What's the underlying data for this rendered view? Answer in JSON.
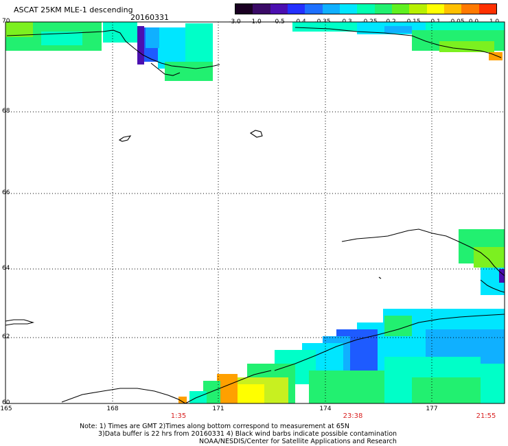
{
  "header": {
    "title": "ASCAT 25KM MLE-1 descending",
    "date": "20160331"
  },
  "colorbar": {
    "labels": [
      "-3.0",
      "-1.0",
      "-0.5",
      "-0.4",
      "-0.35",
      "-0.3",
      "-0.25",
      "-0.2",
      "-0.15",
      "-0.1",
      "-0.05",
      "0.0",
      "1.0"
    ],
    "colors": [
      "#1a0022",
      "#3a0a66",
      "#4b0fb0",
      "#2430ff",
      "#1e70ff",
      "#10b0ff",
      "#00e6ff",
      "#00ffb0",
      "#22f070",
      "#60f020",
      "#b8f000",
      "#ffff00",
      "#ffc000",
      "#ff7a00",
      "#ff3000"
    ]
  },
  "axes": {
    "latitudes": [
      "70",
      "68",
      "66",
      "64",
      "62",
      "60"
    ],
    "longitudes": [
      "165",
      "168",
      "171",
      "174",
      "177"
    ]
  },
  "times": [
    "1:35",
    "23:38",
    "21:55"
  ],
  "notes": {
    "line1": "Note: 1) Times are GMT 2)Times along bottom correspond to measurement at 65N",
    "line2": "3)Data buffer is 22 hrs from 20160331 4) Black wind barbs indicate possible contamination",
    "line3": "NOAA/NESDIS/Center for Satellite Applications and Research"
  },
  "palette": {
    "violet": "#4b0fb0",
    "blue": "#1e5bff",
    "skyblue": "#10b0ff",
    "cyan": "#00e6ff",
    "aqua": "#00ffc8",
    "green": "#22f070",
    "lime": "#7cf020",
    "yellowgreen": "#c8f020",
    "yellow": "#ffff00",
    "orange": "#ffa000",
    "red": "#ff3000"
  }
}
